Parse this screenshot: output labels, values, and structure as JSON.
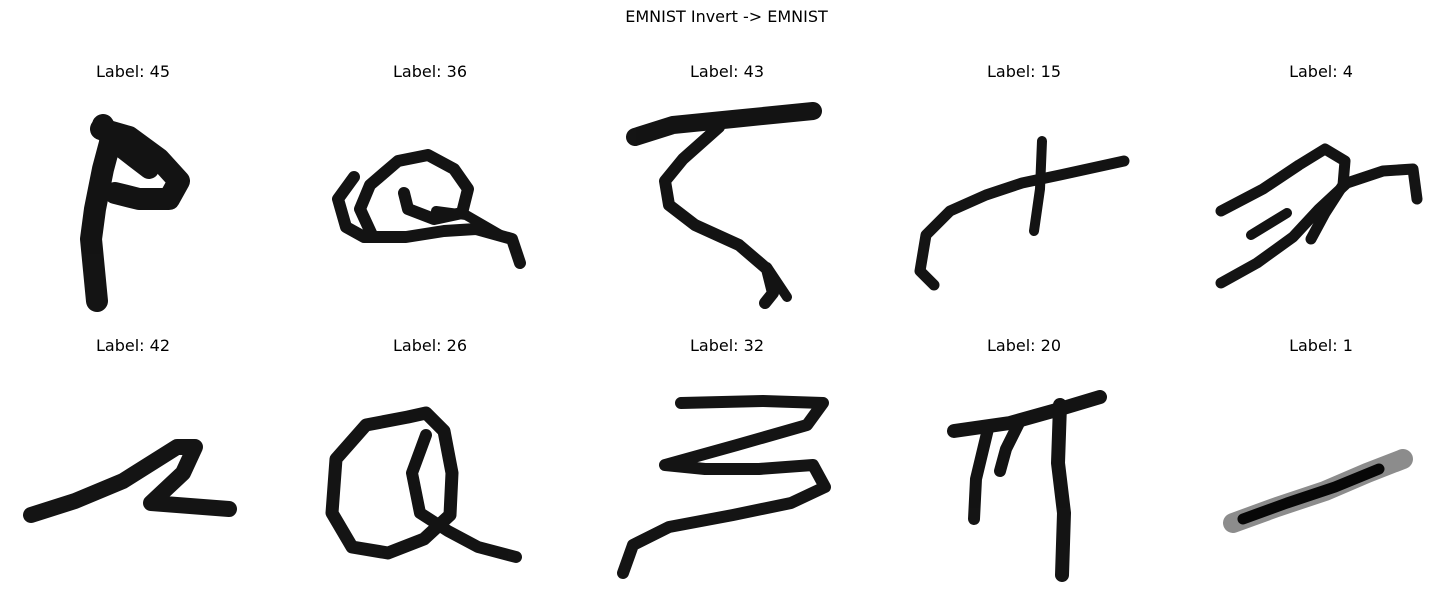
{
  "figure": {
    "title": "EMNIST Invert -> EMNIST"
  },
  "samples": [
    {
      "label": "Label: 45",
      "glyph": "handwritten-stroke"
    },
    {
      "label": "Label: 36",
      "glyph": "handwritten-stroke"
    },
    {
      "label": "Label: 43",
      "glyph": "handwritten-stroke"
    },
    {
      "label": "Label: 15",
      "glyph": "handwritten-stroke"
    },
    {
      "label": "Label: 4",
      "glyph": "handwritten-stroke"
    },
    {
      "label": "Label: 42",
      "glyph": "handwritten-stroke"
    },
    {
      "label": "Label: 26",
      "glyph": "handwritten-stroke"
    },
    {
      "label": "Label: 32",
      "glyph": "handwritten-stroke"
    },
    {
      "label": "Label: 20",
      "glyph": "handwritten-stroke"
    },
    {
      "label": "Label: 1",
      "glyph": "handwritten-stroke"
    }
  ],
  "colors": {
    "ink": "#000000",
    "background": "#ffffff"
  }
}
